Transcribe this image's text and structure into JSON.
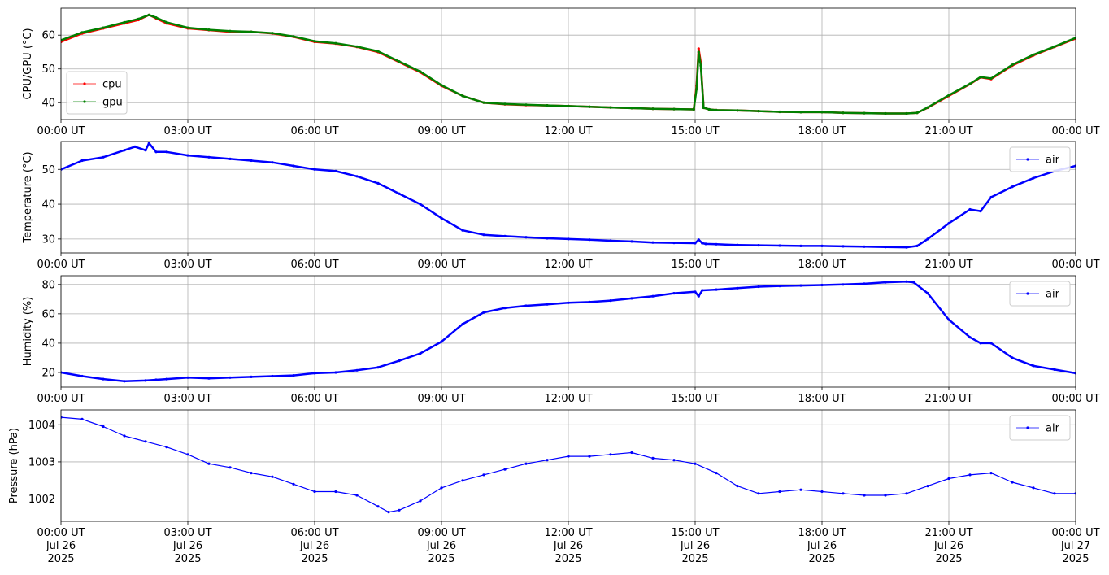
{
  "chart_data": [
    {
      "type": "line",
      "ylabel": "CPU/GPU (°C)",
      "ylim": [
        35,
        68
      ],
      "yticks": [
        40,
        50,
        60
      ],
      "legend": "lower-left",
      "grid": true,
      "series": [
        {
          "name": "cpu",
          "color": "#ff0000",
          "x": [
            "00:00",
            "00:30",
            "01:00",
            "01:30",
            "01:50",
            "02:05",
            "02:15",
            "02:30",
            "03:00",
            "03:30",
            "04:00",
            "04:30",
            "05:00",
            "05:30",
            "06:00",
            "06:30",
            "07:00",
            "07:30",
            "08:00",
            "08:30",
            "09:00",
            "09:30",
            "10:00",
            "10:30",
            "11:00",
            "11:30",
            "12:00",
            "12:30",
            "13:00",
            "13:30",
            "14:00",
            "14:30",
            "14:58",
            "15:02",
            "15:05",
            "15:08",
            "15:12",
            "15:20",
            "15:30",
            "16:00",
            "16:30",
            "17:00",
            "17:30",
            "18:00",
            "18:30",
            "19:00",
            "19:30",
            "20:00",
            "20:15",
            "20:30",
            "21:00",
            "21:30",
            "21:45",
            "22:00",
            "22:30",
            "23:00",
            "23:30",
            "24:00"
          ],
          "y": [
            58,
            60.5,
            62,
            63.5,
            64.5,
            66,
            65,
            63.5,
            62,
            61.5,
            61,
            61,
            60.5,
            59.5,
            58,
            57.5,
            56.5,
            55,
            52,
            49,
            45,
            42,
            40,
            39.5,
            39.3,
            39.2,
            39,
            38.8,
            38.6,
            38.4,
            38.2,
            38.1,
            38,
            45,
            56,
            52,
            38.5,
            38,
            37.8,
            37.7,
            37.5,
            37.3,
            37.2,
            37.2,
            37,
            36.9,
            36.8,
            36.8,
            37,
            38.5,
            42,
            45.5,
            47.5,
            47,
            51,
            54,
            56.5,
            59
          ]
        },
        {
          "name": "gpu",
          "color": "#008000",
          "x": [
            "00:00",
            "00:30",
            "01:00",
            "01:30",
            "01:50",
            "02:05",
            "02:15",
            "02:30",
            "03:00",
            "03:30",
            "04:00",
            "04:30",
            "05:00",
            "05:30",
            "06:00",
            "06:30",
            "07:00",
            "07:30",
            "08:00",
            "08:30",
            "09:00",
            "09:30",
            "10:00",
            "10:30",
            "11:00",
            "11:30",
            "12:00",
            "12:30",
            "13:00",
            "13:30",
            "14:00",
            "14:30",
            "14:58",
            "15:02",
            "15:05",
            "15:08",
            "15:12",
            "15:20",
            "15:30",
            "16:00",
            "16:30",
            "17:00",
            "17:30",
            "18:00",
            "18:30",
            "19:00",
            "19:30",
            "20:00",
            "20:15",
            "20:30",
            "21:00",
            "21:30",
            "21:45",
            "22:00",
            "22:30",
            "23:00",
            "23:30",
            "24:00"
          ],
          "y": [
            58.5,
            60.8,
            62.2,
            63.8,
            64.8,
            66,
            65.2,
            63.8,
            62.2,
            61.6,
            61.2,
            61,
            60.6,
            59.6,
            58.2,
            57.6,
            56.6,
            55.2,
            52.2,
            49.2,
            45.2,
            42,
            40,
            39.6,
            39.4,
            39.2,
            39,
            38.8,
            38.6,
            38.4,
            38.2,
            38.1,
            38,
            44,
            55,
            51,
            38.5,
            38,
            37.8,
            37.7,
            37.5,
            37.3,
            37.2,
            37.2,
            37,
            36.9,
            36.8,
            36.8,
            37,
            38.6,
            42.2,
            45.6,
            47.6,
            47.2,
            51.2,
            54.2,
            56.6,
            59.2
          ]
        }
      ]
    },
    {
      "type": "line",
      "ylabel": "Temperature (°C)",
      "ylim": [
        26,
        58
      ],
      "yticks": [
        30,
        40,
        50
      ],
      "legend": "top-right",
      "grid": true,
      "series": [
        {
          "name": "air",
          "color": "#0000ff",
          "x": [
            "00:00",
            "00:30",
            "01:00",
            "01:30",
            "01:45",
            "02:00",
            "02:05",
            "02:15",
            "02:30",
            "03:00",
            "03:30",
            "04:00",
            "04:30",
            "05:00",
            "05:30",
            "06:00",
            "06:30",
            "07:00",
            "07:30",
            "08:00",
            "08:30",
            "09:00",
            "09:30",
            "10:00",
            "10:30",
            "11:00",
            "11:30",
            "12:00",
            "12:30",
            "13:00",
            "13:30",
            "14:00",
            "14:30",
            "15:00",
            "15:05",
            "15:10",
            "15:15",
            "15:30",
            "16:00",
            "16:30",
            "17:00",
            "17:30",
            "18:00",
            "18:30",
            "19:00",
            "19:30",
            "20:00",
            "20:15",
            "20:30",
            "21:00",
            "21:30",
            "21:45",
            "22:00",
            "22:30",
            "23:00",
            "23:30",
            "24:00"
          ],
          "y": [
            50,
            52.5,
            53.5,
            55.5,
            56.5,
            55.5,
            57.5,
            55,
            55,
            54,
            53.5,
            53,
            52.5,
            52,
            51,
            50,
            49.5,
            48,
            46,
            43,
            40,
            36,
            32.5,
            31.2,
            30.8,
            30.5,
            30.2,
            30,
            29.8,
            29.5,
            29.3,
            29,
            28.9,
            28.8,
            29.8,
            28.8,
            28.6,
            28.5,
            28.3,
            28.2,
            28.1,
            28,
            28,
            27.9,
            27.8,
            27.7,
            27.6,
            28,
            30,
            34.5,
            38.5,
            38,
            42,
            45,
            47.5,
            49.5,
            51
          ]
        }
      ]
    },
    {
      "type": "line",
      "ylabel": "Humidity (%)",
      "ylim": [
        10,
        86
      ],
      "yticks": [
        20,
        40,
        60,
        80
      ],
      "legend": "top-right",
      "grid": true,
      "series": [
        {
          "name": "air",
          "color": "#0000ff",
          "x": [
            "00:00",
            "00:30",
            "01:00",
            "01:30",
            "02:00",
            "02:15",
            "02:30",
            "03:00",
            "03:30",
            "04:00",
            "04:30",
            "05:00",
            "05:30",
            "06:00",
            "06:30",
            "07:00",
            "07:30",
            "08:00",
            "08:30",
            "09:00",
            "09:30",
            "10:00",
            "10:30",
            "11:00",
            "11:30",
            "12:00",
            "12:30",
            "13:00",
            "13:30",
            "14:00",
            "14:30",
            "15:00",
            "15:05",
            "15:10",
            "15:30",
            "16:00",
            "16:30",
            "17:00",
            "17:30",
            "18:00",
            "18:30",
            "19:00",
            "19:30",
            "20:00",
            "20:10",
            "20:30",
            "21:00",
            "21:30",
            "21:45",
            "22:00",
            "22:30",
            "23:00",
            "23:30",
            "24:00"
          ],
          "y": [
            20,
            17.5,
            15.5,
            14,
            14.5,
            15,
            15.5,
            16.5,
            16,
            16.5,
            17,
            17.5,
            18,
            19.5,
            20,
            21.5,
            23.5,
            28,
            33,
            41,
            53,
            61,
            64,
            65.5,
            66.5,
            67.5,
            68,
            69,
            70.5,
            72,
            74,
            75,
            72,
            76,
            76.5,
            77.5,
            78.5,
            79,
            79.3,
            79.6,
            80,
            80.5,
            81.5,
            82,
            81.5,
            74,
            56,
            44,
            40,
            40,
            30,
            24.5,
            22,
            19.5
          ]
        }
      ]
    },
    {
      "type": "line",
      "ylabel": "Pressure (hPa)",
      "ylim": [
        1001.4,
        1004.4
      ],
      "yticks": [
        1002,
        1003,
        1004
      ],
      "legend": "top-right",
      "grid": true,
      "series": [
        {
          "name": "air",
          "color": "#0000ff",
          "x": [
            "00:00",
            "00:30",
            "01:00",
            "01:30",
            "02:00",
            "02:30",
            "03:00",
            "03:30",
            "04:00",
            "04:30",
            "05:00",
            "05:30",
            "06:00",
            "06:30",
            "07:00",
            "07:30",
            "07:45",
            "08:00",
            "08:30",
            "09:00",
            "09:30",
            "10:00",
            "10:30",
            "11:00",
            "11:30",
            "12:00",
            "12:30",
            "13:00",
            "13:30",
            "14:00",
            "14:30",
            "15:00",
            "15:30",
            "16:00",
            "16:30",
            "17:00",
            "17:30",
            "18:00",
            "18:30",
            "19:00",
            "19:30",
            "20:00",
            "20:30",
            "21:00",
            "21:30",
            "22:00",
            "22:30",
            "23:00",
            "23:30",
            "24:00"
          ],
          "y": [
            1004.2,
            1004.15,
            1003.95,
            1003.7,
            1003.55,
            1003.4,
            1003.2,
            1002.95,
            1002.85,
            1002.7,
            1002.6,
            1002.4,
            1002.2,
            1002.2,
            1002.1,
            1001.8,
            1001.65,
            1001.7,
            1001.95,
            1002.3,
            1002.5,
            1002.65,
            1002.8,
            1002.95,
            1003.05,
            1003.15,
            1003.15,
            1003.2,
            1003.25,
            1003.1,
            1003.05,
            1002.95,
            1002.7,
            1002.35,
            1002.15,
            1002.2,
            1002.25,
            1002.2,
            1002.15,
            1002.1,
            1002.1,
            1002.15,
            1002.35,
            1002.55,
            1002.65,
            1002.7,
            1002.45,
            1002.3,
            1002.15,
            1002.15
          ]
        }
      ]
    }
  ],
  "x_axis": {
    "ticks": [
      "00:00 UT",
      "03:00 UT",
      "06:00 UT",
      "09:00 UT",
      "12:00 UT",
      "15:00 UT",
      "18:00 UT",
      "21:00 UT",
      "00:00 UT"
    ],
    "date_lines": [
      "Jul 26",
      "Jul 26",
      "Jul 26",
      "Jul 26",
      "Jul 26",
      "Jul 26",
      "Jul 26",
      "Jul 26",
      "Jul 27"
    ],
    "year_lines": [
      "2025",
      "2025",
      "2025",
      "2025",
      "2025",
      "2025",
      "2025",
      "2025",
      "2025"
    ],
    "range": [
      "2025-07-26 00:00",
      "2025-07-27 00:00"
    ]
  }
}
